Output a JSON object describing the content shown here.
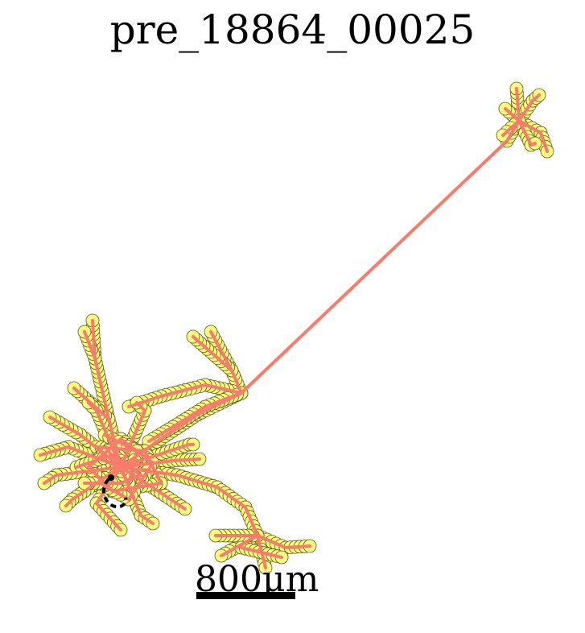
{
  "title": "pre_18864_00025",
  "scale_bar": {
    "label": "800μm"
  },
  "colors": {
    "skeleton": "#f87b6c",
    "node_fill": "#fbfb80",
    "node_stroke": "#5a5a1e",
    "soma": "#000000"
  },
  "legend": []
}
